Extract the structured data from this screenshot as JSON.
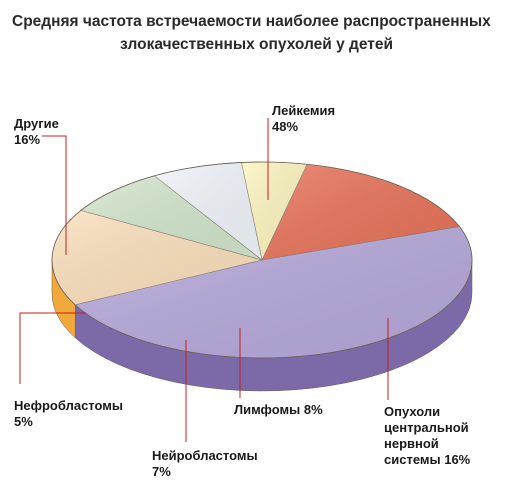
{
  "chart_data": {
    "type": "pie",
    "title_lines": [
      "Средняя частота встречаемости наиболее распространенных",
      "злокачественных опухолей у детей"
    ],
    "unit": "%",
    "slices": [
      {
        "key": "leukemia",
        "label_lines": [
          "Лейкемия",
          "48%"
        ],
        "value": 48,
        "color_top": "#b7a9dc",
        "color_side": "#7c6aa8"
      },
      {
        "key": "cns",
        "label_lines": [
          "Опухоли",
          "центральной",
          "нервной",
          "системы 16%"
        ],
        "value": 16,
        "color_top": "#fbe0bd",
        "color_side": "#f1a93b"
      },
      {
        "key": "lymphoma",
        "label_lines": [
          "Лимфомы 8%"
        ],
        "value": 8,
        "color_top": "#d3e6cd",
        "color_side": "#a3c28d"
      },
      {
        "key": "neuroblastoma",
        "label_lines": [
          "Нейробластомы",
          "7%"
        ],
        "value": 7,
        "color_top": "#f1f6fc",
        "color_side": "#5ba7dd"
      },
      {
        "key": "nephroblastoma",
        "label_lines": [
          "Нефробластомы",
          "5%"
        ],
        "value": 5,
        "color_top": "#fdf6c0",
        "color_side": "#f5dd6a"
      },
      {
        "key": "other",
        "label_lines": [
          "Другие",
          "16%"
        ],
        "value": 16,
        "color_top": "#e8735a",
        "color_side": "#c9452e"
      }
    ],
    "legend": "none",
    "style": "3d-pie"
  }
}
